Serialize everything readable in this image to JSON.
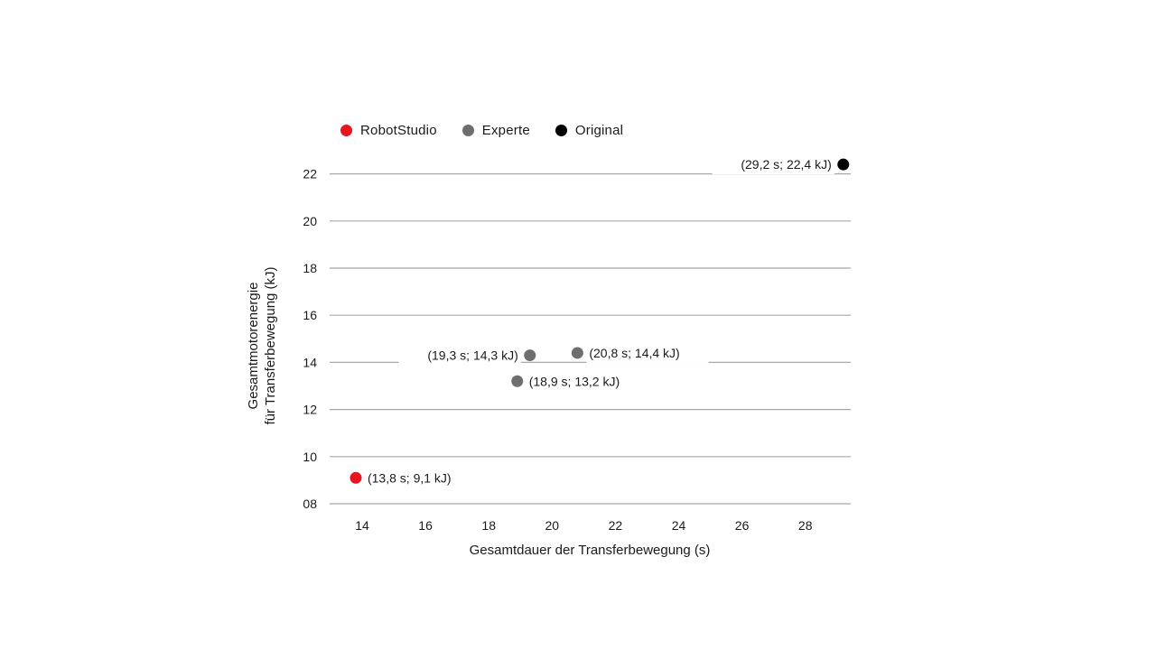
{
  "chart_data": {
    "type": "scatter",
    "xlabel": "Gesamtdauer der Transferbewegung (s)",
    "ylabel_lines": [
      "Gesamtmotorenergie",
      "für Transferbewegung (kJ)"
    ],
    "xlim": [
      13,
      29.3
    ],
    "ylim": [
      8,
      22.6
    ],
    "xticks": [
      14,
      16,
      18,
      20,
      22,
      24,
      26,
      28
    ],
    "xtick_labels": [
      "14",
      "16",
      "18",
      "20",
      "22",
      "24",
      "26",
      "28"
    ],
    "yticks": [
      8,
      10,
      12,
      14,
      16,
      18,
      20,
      22
    ],
    "ytick_labels": [
      "08",
      "10",
      "12",
      "14",
      "16",
      "18",
      "20",
      "22"
    ],
    "grid": "horizontal",
    "legend_position": "top-left",
    "series": [
      {
        "name": "RobotStudio",
        "color": "#e8141e",
        "points": [
          {
            "x": 13.8,
            "y": 9.1,
            "label": "(13,8 s; 9,1 kJ)",
            "label_side": "right"
          }
        ]
      },
      {
        "name": "Experte",
        "color": "#6e6e6e",
        "points": [
          {
            "x": 19.3,
            "y": 14.3,
            "label": "(19,3 s; 14,3 kJ)",
            "label_side": "left"
          },
          {
            "x": 20.8,
            "y": 14.4,
            "label": "(20,8 s; 14,4 kJ)",
            "label_side": "right"
          },
          {
            "x": 18.9,
            "y": 13.2,
            "label": "(18,9 s; 13,2 kJ)",
            "label_side": "right"
          }
        ]
      },
      {
        "name": "Original",
        "color": "#000000",
        "points": [
          {
            "x": 29.2,
            "y": 22.4,
            "label": "(29,2 s; 22,4 kJ)",
            "label_side": "left"
          }
        ]
      }
    ]
  }
}
